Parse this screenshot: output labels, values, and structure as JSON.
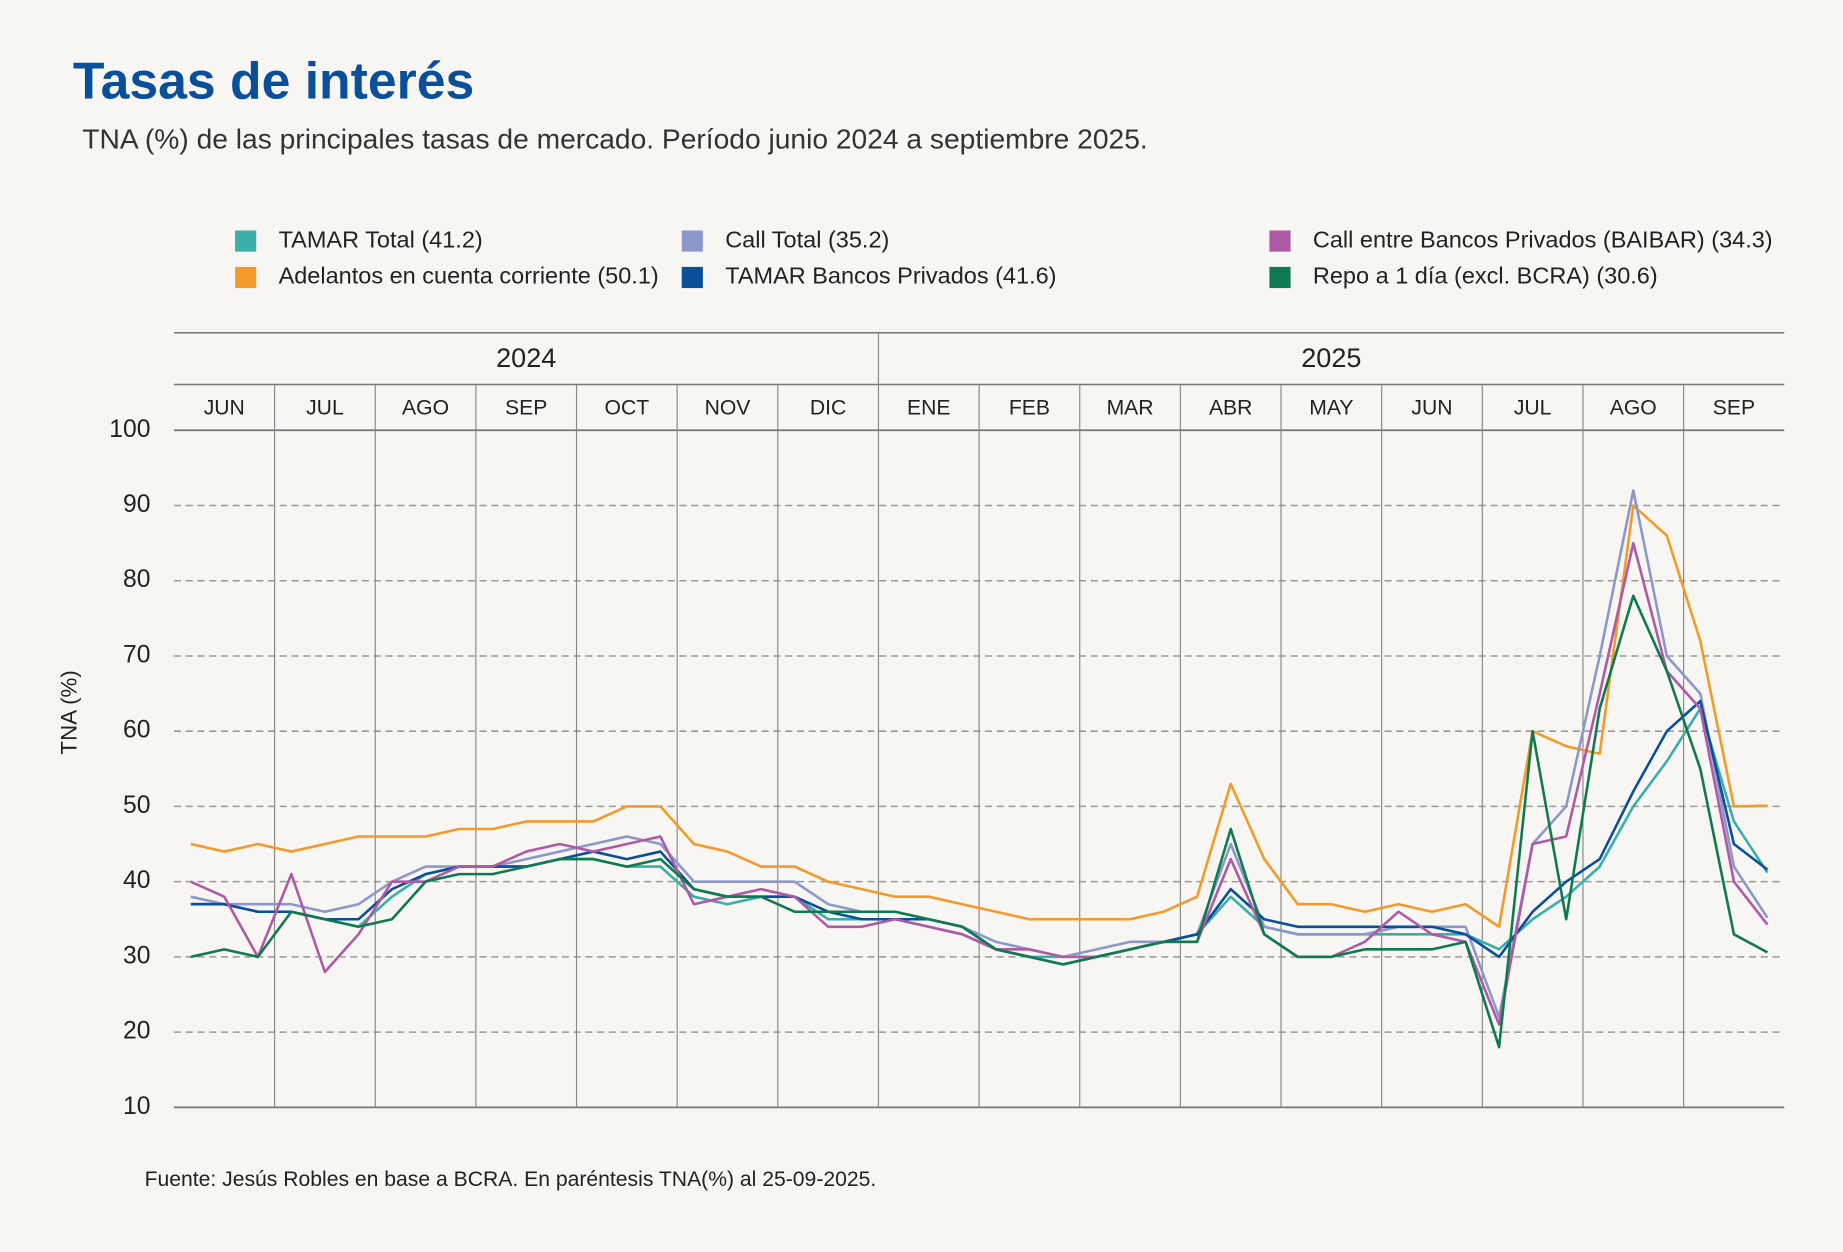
{
  "chart_data": {
    "type": "line",
    "title": "Tasas de interés",
    "subtitle": "TNA (%) de las principales tasas de mercado. Período junio 2024 a septiembre 2025.",
    "ylabel": "TNA (%)",
    "source": "Fuente: Jesús Robles en base a BCRA. En paréntesis TNA(%) al 25-09-2025.",
    "x_groups": [
      {
        "label": "2024",
        "categories": [
          "JUN",
          "JUL",
          "AGO",
          "SEP",
          "OCT",
          "NOV",
          "DIC"
        ]
      },
      {
        "label": "2025",
        "categories": [
          "ENE",
          "FEB",
          "MAR",
          "ABR",
          "MAY",
          "JUN",
          "JUL",
          "AGO",
          "SEP"
        ]
      }
    ],
    "ylim": [
      10,
      100
    ],
    "yticks": [
      10,
      20,
      30,
      40,
      50,
      60,
      70,
      80,
      90,
      100
    ],
    "grid": true,
    "series": [
      {
        "name": "TAMAR Total (41.2)",
        "color": "#3aaea8",
        "values": [
          [
            37,
            37,
            36
          ],
          [
            36,
            35,
            34
          ],
          [
            38,
            41,
            42
          ],
          [
            42,
            42,
            43
          ],
          [
            43,
            42,
            42
          ],
          [
            38,
            37,
            38
          ],
          [
            38,
            35,
            35
          ],
          [
            35,
            34,
            33
          ],
          [
            31,
            30,
            30
          ],
          [
            30,
            31,
            32
          ],
          [
            33,
            38,
            34
          ],
          [
            33,
            33,
            33
          ],
          [
            33,
            33,
            33
          ],
          [
            31,
            35,
            38
          ],
          [
            42,
            50,
            56
          ],
          [
            63,
            48,
            41.2
          ]
        ]
      },
      {
        "name": "Adelantos en cuenta corriente (50.1)",
        "color": "#f39a2b",
        "values": [
          [
            45,
            44,
            45
          ],
          [
            44,
            45,
            46
          ],
          [
            46,
            46,
            47
          ],
          [
            47,
            48,
            48
          ],
          [
            48,
            50,
            50
          ],
          [
            45,
            44,
            42
          ],
          [
            42,
            40,
            39
          ],
          [
            38,
            38,
            37
          ],
          [
            36,
            35,
            35
          ],
          [
            35,
            35,
            36
          ],
          [
            38,
            53,
            43
          ],
          [
            37,
            37,
            36
          ],
          [
            37,
            36,
            37
          ],
          [
            34,
            60,
            58
          ],
          [
            57,
            90,
            86
          ],
          [
            72,
            50,
            50.1
          ]
        ]
      },
      {
        "name": "Call Total (35.2)",
        "color": "#8c97cc",
        "values": [
          [
            38,
            37,
            37
          ],
          [
            37,
            36,
            37
          ],
          [
            40,
            42,
            42
          ],
          [
            42,
            43,
            44
          ],
          [
            45,
            46,
            45
          ],
          [
            40,
            40,
            40
          ],
          [
            40,
            37,
            36
          ],
          [
            36,
            35,
            34
          ],
          [
            32,
            31,
            30
          ],
          [
            31,
            32,
            32
          ],
          [
            33,
            45,
            34
          ],
          [
            33,
            33,
            33
          ],
          [
            34,
            34,
            34
          ],
          [
            22,
            45,
            50
          ],
          [
            70,
            92,
            70
          ],
          [
            65,
            42,
            35.2
          ]
        ]
      },
      {
        "name": "TAMAR Bancos Privados (41.6)",
        "color": "#0a4f9c",
        "values": [
          [
            37,
            37,
            36
          ],
          [
            36,
            35,
            35
          ],
          [
            39,
            41,
            42
          ],
          [
            42,
            42,
            43
          ],
          [
            44,
            43,
            44
          ],
          [
            39,
            38,
            38
          ],
          [
            38,
            36,
            35
          ],
          [
            35,
            35,
            34
          ],
          [
            31,
            30,
            29
          ],
          [
            30,
            31,
            32
          ],
          [
            33,
            39,
            35
          ],
          [
            34,
            34,
            34
          ],
          [
            34,
            34,
            33
          ],
          [
            30,
            36,
            40
          ],
          [
            43,
            52,
            60
          ],
          [
            64,
            45,
            41.6
          ]
        ]
      },
      {
        "name": "Call entre Bancos Privados (BAIBAR) (34.3)",
        "color": "#b05aa6",
        "values": [
          [
            40,
            38,
            30
          ],
          [
            41,
            28,
            33
          ],
          [
            40,
            40,
            42
          ],
          [
            42,
            44,
            45
          ],
          [
            44,
            45,
            46
          ],
          [
            37,
            38,
            39
          ],
          [
            38,
            34,
            34
          ],
          [
            35,
            34,
            33
          ],
          [
            31,
            31,
            30
          ],
          [
            30,
            31,
            32
          ],
          [
            32,
            43,
            33
          ],
          [
            30,
            30,
            32
          ],
          [
            36,
            33,
            32
          ],
          [
            21,
            45,
            46
          ],
          [
            65,
            85,
            68
          ],
          [
            63,
            40,
            34.3
          ]
        ]
      },
      {
        "name": "Repo a 1 día (excl. BCRA) (30.6)",
        "color": "#0f7a4f",
        "values": [
          [
            30,
            31,
            30
          ],
          [
            36,
            35,
            34
          ],
          [
            35,
            40,
            41
          ],
          [
            41,
            42,
            43
          ],
          [
            43,
            42,
            43
          ],
          [
            39,
            38,
            38
          ],
          [
            36,
            36,
            36
          ],
          [
            36,
            35,
            34
          ],
          [
            31,
            30,
            29
          ],
          [
            30,
            31,
            32
          ],
          [
            32,
            47,
            33
          ],
          [
            30,
            30,
            31
          ],
          [
            31,
            31,
            32
          ],
          [
            18,
            60,
            35
          ],
          [
            63,
            78,
            68
          ],
          [
            55,
            33,
            30.6
          ]
        ]
      }
    ]
  }
}
